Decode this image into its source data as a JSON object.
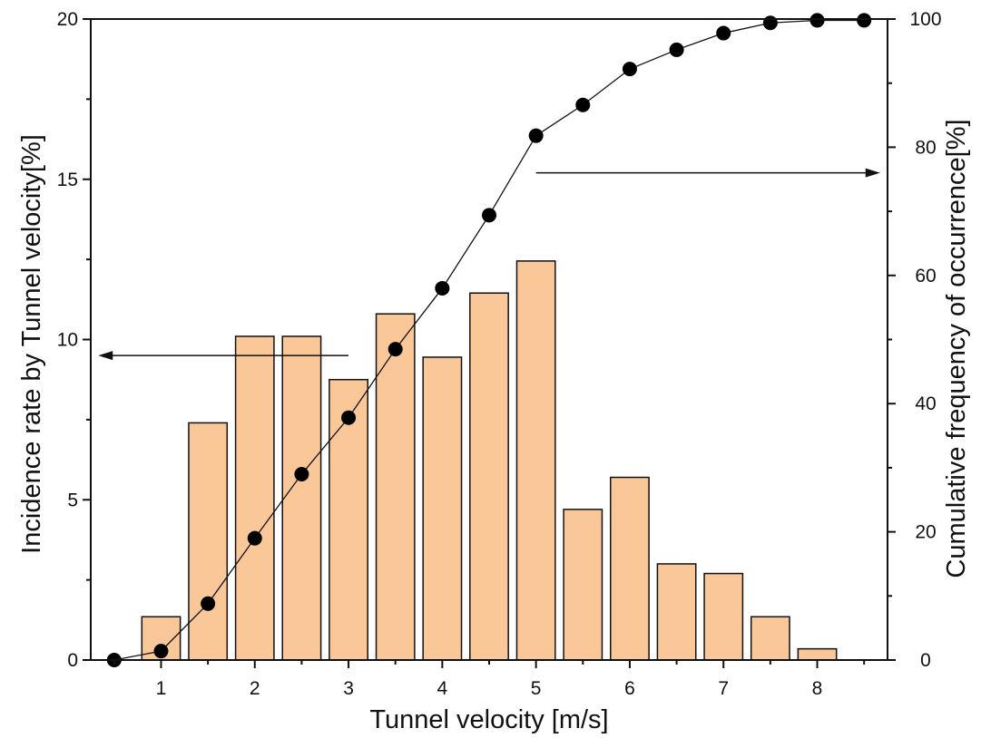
{
  "chart_data": {
    "type": "bar",
    "xlabel": "Tunnel velocity [m/s]",
    "ylabel": "Incidence rate by Tunnel velocity[%]",
    "y2label": "Cumulative frequency of occurrence[%]",
    "xlim": [
      0.25,
      8.75
    ],
    "ylim": [
      0,
      20
    ],
    "y2lim": [
      0,
      100
    ],
    "x_ticks": [
      1,
      2,
      3,
      4,
      5,
      6,
      7,
      8
    ],
    "y_ticks": [
      0,
      5,
      10,
      15,
      20
    ],
    "y2_ticks": [
      0,
      20,
      40,
      60,
      80,
      100
    ],
    "bar_color": "#f9c798",
    "series": [
      {
        "type": "bar",
        "axis": "left",
        "x": [
          1.0,
          1.5,
          2.0,
          2.5,
          3.0,
          3.5,
          4.0,
          4.5,
          5.0,
          5.5,
          6.0,
          6.5,
          7.0,
          7.5,
          8.0
        ],
        "values": [
          1.35,
          7.4,
          10.1,
          10.1,
          8.75,
          10.8,
          9.45,
          11.45,
          12.45,
          4.7,
          5.7,
          3.0,
          2.7,
          1.35,
          0.35
        ]
      },
      {
        "type": "line",
        "axis": "right",
        "markers": "filled-circle",
        "x": [
          0.5,
          1.0,
          1.5,
          2.0,
          2.5,
          3.0,
          3.5,
          4.0,
          4.5,
          5.0,
          5.5,
          6.0,
          6.5,
          7.0,
          7.5,
          8.0,
          8.5
        ],
        "values": [
          0.0,
          1.4,
          8.8,
          19.0,
          29.0,
          37.8,
          48.5,
          58.0,
          69.4,
          81.8,
          86.6,
          92.2,
          95.2,
          97.8,
          99.4,
          99.8,
          99.8
        ]
      }
    ],
    "annotations": [
      {
        "type": "arrow",
        "direction": "left",
        "points_to": "left axis",
        "from": [
          3.0,
          9.5
        ],
        "to": [
          0.33,
          9.5
        ]
      },
      {
        "type": "arrow",
        "direction": "right",
        "points_to": "right axis",
        "from": [
          5.0,
          15.2
        ],
        "to": [
          8.67,
          15.2
        ]
      }
    ]
  }
}
